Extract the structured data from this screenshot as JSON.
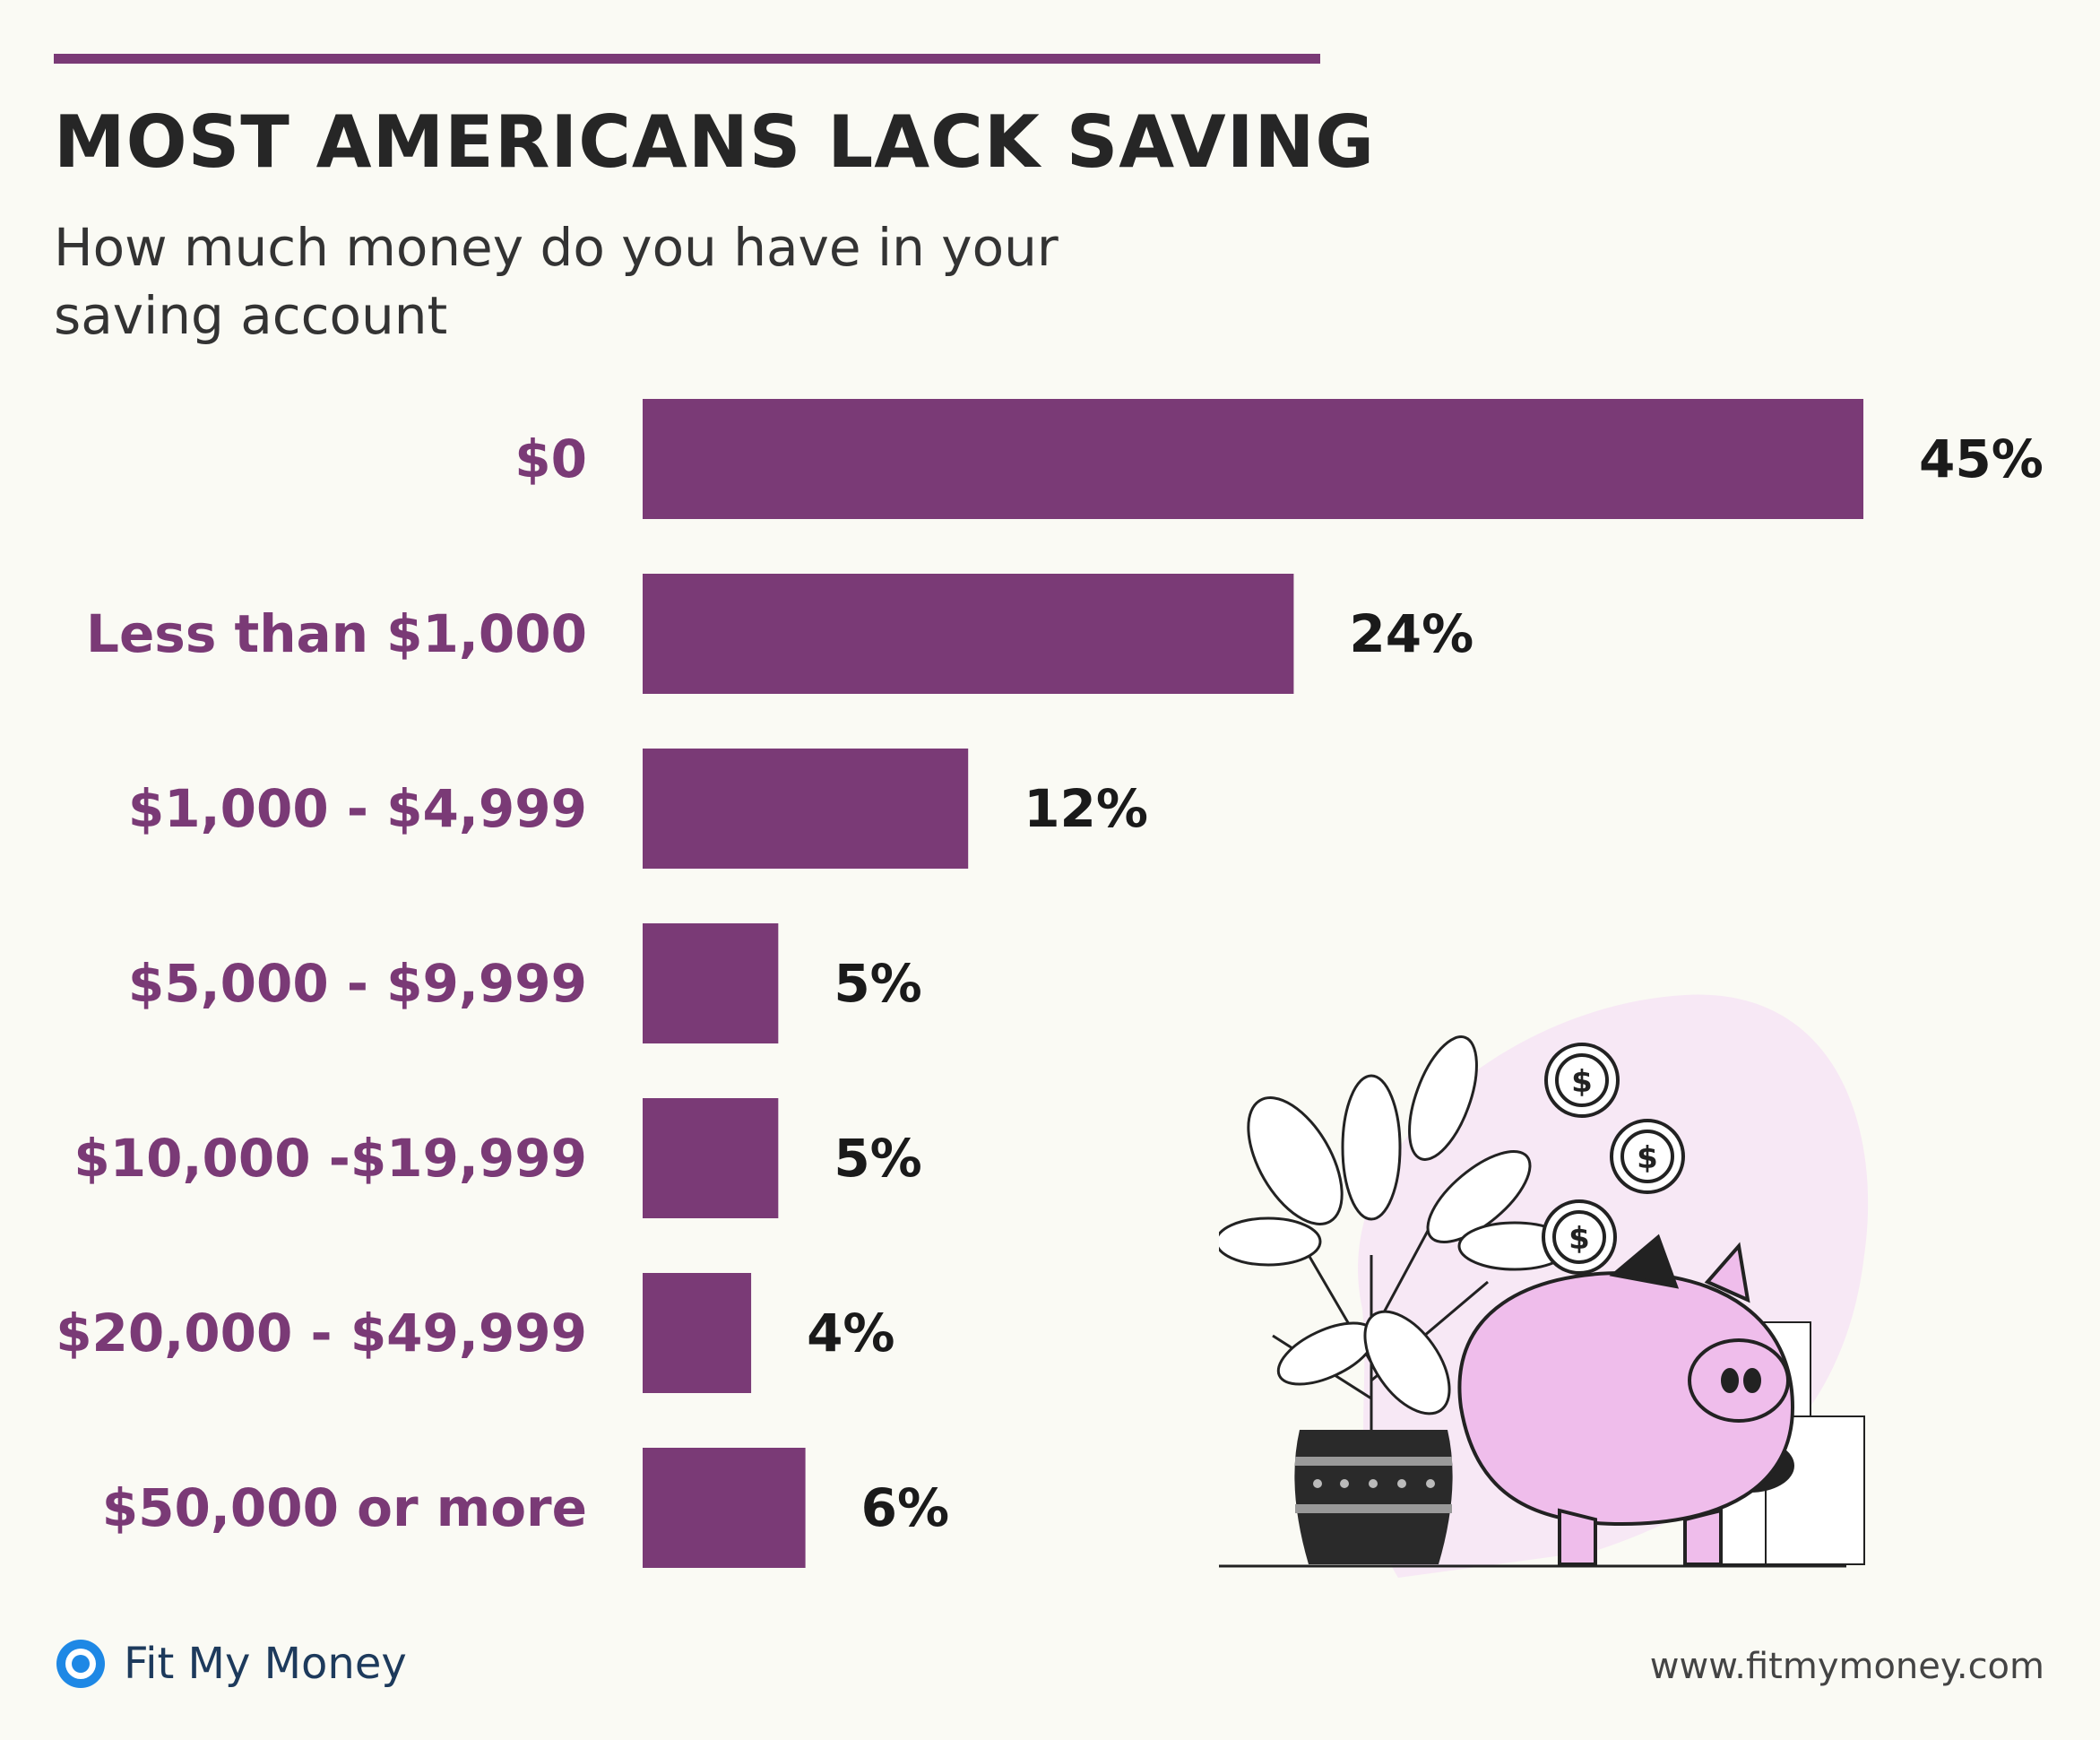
{
  "header": {
    "title": "MOST AMERICANS LACK SAVING",
    "subtitle": "How much money do you have in your saving account"
  },
  "chart_data": {
    "type": "bar",
    "orientation": "horizontal",
    "title": "MOST AMERICANS LACK SAVING",
    "subtitle": "How much money do you have in your saving account",
    "categories": [
      "$0",
      "Less than $1,000",
      "$1,000 - $4,999",
      "$5,000 - $9,999",
      "$10,000 -$19,999",
      "$20,000 - $49,999",
      "$50,000 or more"
    ],
    "values": [
      45,
      24,
      12,
      5,
      5,
      4,
      6
    ],
    "value_labels": [
      "45%",
      "24%",
      "12%",
      "5%",
      "5%",
      "4%",
      "6%"
    ],
    "unit": "%",
    "grid": false,
    "bar_color": "#7a3a76"
  },
  "footer": {
    "brand": "Fit My Money",
    "website": "www.fitmymoney.com"
  },
  "colors": {
    "accent": "#7a3a76",
    "background": "#fafaf4",
    "brand_blue": "#1e88e5",
    "piggy_pink": "#efbdeb"
  },
  "icons": [
    "fit-my-money-logo-icon",
    "piggy-bank-illustration",
    "dollar-coin-icon",
    "plant-icon"
  ]
}
